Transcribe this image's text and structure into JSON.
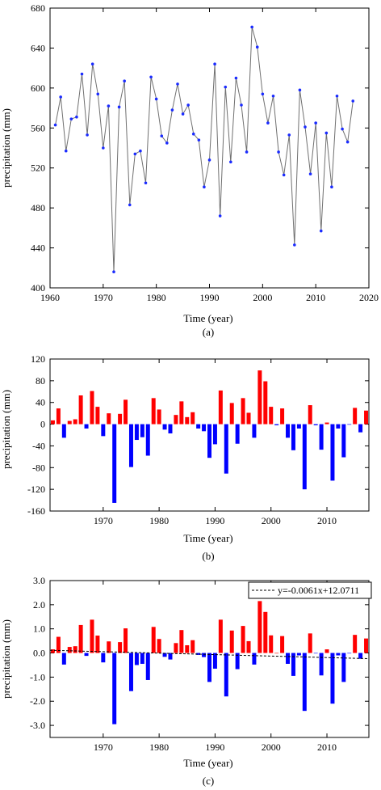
{
  "colors": {
    "positive": "#ff0000",
    "negative": "#0000ff",
    "line": "#707070",
    "marker": "#1a2bff"
  },
  "chart_data": [
    {
      "type": "line",
      "panel": "(a)",
      "xlabel": "Time (year)",
      "ylabel": "precipitation (mm)",
      "xlim": [
        1960,
        2020
      ],
      "ylim": [
        400,
        680
      ],
      "xticks": [
        1960,
        1970,
        1980,
        1990,
        2000,
        2010,
        2020
      ],
      "yticks": [
        400,
        440,
        480,
        520,
        560,
        600,
        640,
        680
      ],
      "x": [
        1961,
        1962,
        1963,
        1964,
        1965,
        1966,
        1967,
        1968,
        1969,
        1970,
        1971,
        1972,
        1973,
        1974,
        1975,
        1976,
        1977,
        1978,
        1979,
        1980,
        1981,
        1982,
        1983,
        1984,
        1985,
        1986,
        1987,
        1988,
        1989,
        1990,
        1991,
        1992,
        1993,
        1994,
        1995,
        1996,
        1997,
        1998,
        1999,
        2000,
        2001,
        2002,
        2003,
        2004,
        2005,
        2006,
        2007,
        2008,
        2009,
        2010,
        2011,
        2012,
        2013,
        2014,
        2015,
        2016,
        2017
      ],
      "values": [
        563,
        591,
        537,
        569,
        571,
        614,
        553,
        624,
        594,
        540,
        582,
        416,
        581,
        607,
        483,
        534,
        537,
        505,
        611,
        589,
        552,
        545,
        578,
        604,
        574,
        583,
        554,
        548,
        501,
        528,
        624,
        472,
        601,
        526,
        610,
        583,
        536,
        661,
        641,
        594,
        565,
        592,
        536,
        513,
        553,
        443,
        598,
        561,
        514,
        565,
        457,
        555,
        501,
        592,
        559,
        546,
        587
      ]
    },
    {
      "type": "bar",
      "panel": "(b)",
      "xlabel": "Time (year)",
      "ylabel": "precipitation (mm)",
      "xlim": [
        1960.5,
        2017.5
      ],
      "ylim": [
        -160,
        120
      ],
      "xticks": [
        1970,
        1980,
        1990,
        2000,
        2010
      ],
      "yticks": [
        -160,
        -120,
        -80,
        -40,
        0,
        40,
        80,
        120
      ],
      "x": [
        1961,
        1962,
        1963,
        1964,
        1965,
        1966,
        1967,
        1968,
        1969,
        1970,
        1971,
        1972,
        1973,
        1974,
        1975,
        1976,
        1977,
        1978,
        1979,
        1980,
        1981,
        1982,
        1983,
        1984,
        1985,
        1986,
        1987,
        1988,
        1989,
        1990,
        1991,
        1992,
        1993,
        1994,
        1995,
        1996,
        1997,
        1998,
        1999,
        2000,
        2001,
        2002,
        2003,
        2004,
        2005,
        2006,
        2007,
        2008,
        2009,
        2010,
        2011,
        2012,
        2013,
        2014,
        2015,
        2016,
        2017
      ],
      "values": [
        7,
        29,
        -25,
        6,
        9,
        53,
        -8,
        61,
        32,
        -22,
        20,
        -145,
        19,
        45,
        -79,
        -29,
        -24,
        -58,
        48,
        27,
        -10,
        -17,
        17,
        42,
        13,
        22,
        -8,
        -13,
        -62,
        -37,
        62,
        -91,
        39,
        -36,
        48,
        21,
        -25,
        99,
        79,
        32,
        -2,
        29,
        -25,
        -48,
        -8,
        -120,
        35,
        -2,
        -47,
        3,
        -104,
        -8,
        -61,
        -1,
        30,
        -15,
        25
      ]
    },
    {
      "type": "bar",
      "panel": "(c)",
      "xlabel": "Time (year)",
      "ylabel": "precipitation (mm)",
      "xlim": [
        1960.5,
        2017.5
      ],
      "ylim": [
        -3.5,
        3.0
      ],
      "xticks": [
        1970,
        1980,
        1990,
        2000,
        2010
      ],
      "yticks": [
        3.0,
        2.0,
        1.0,
        0.0,
        -1.0,
        -2.0,
        -3.0
      ],
      "x": [
        1961,
        1962,
        1963,
        1964,
        1965,
        1966,
        1967,
        1968,
        1969,
        1970,
        1971,
        1972,
        1973,
        1974,
        1975,
        1976,
        1977,
        1978,
        1979,
        1980,
        1981,
        1982,
        1983,
        1984,
        1985,
        1986,
        1987,
        1988,
        1989,
        1990,
        1991,
        1992,
        1993,
        1994,
        1995,
        1996,
        1997,
        1998,
        1999,
        2000,
        2001,
        2002,
        2003,
        2004,
        2005,
        2006,
        2007,
        2008,
        2009,
        2010,
        2011,
        2012,
        2013,
        2014,
        2015,
        2016,
        2017
      ],
      "values": [
        0.15,
        0.67,
        -0.48,
        0.25,
        0.28,
        1.16,
        -0.12,
        1.38,
        0.72,
        -0.39,
        0.48,
        -2.95,
        0.45,
        1.02,
        -1.58,
        -0.5,
        -0.45,
        -1.12,
        1.08,
        0.58,
        -0.16,
        -0.27,
        0.41,
        0.95,
        0.32,
        0.53,
        -0.08,
        -0.17,
        -1.2,
        -0.65,
        1.38,
        -1.8,
        0.93,
        -0.67,
        1.12,
        0.49,
        -0.48,
        2.15,
        1.7,
        0.73,
        0.0,
        0.7,
        -0.45,
        -0.95,
        -0.1,
        -2.4,
        0.81,
        -0.02,
        -0.93,
        0.15,
        -2.1,
        -0.1,
        -1.2,
        -0.02,
        0.75,
        -0.24,
        0.6
      ],
      "trend": {
        "slope": -0.0061,
        "intercept": 12.0711,
        "label": "y=-0.0061x+12.0711"
      }
    }
  ]
}
